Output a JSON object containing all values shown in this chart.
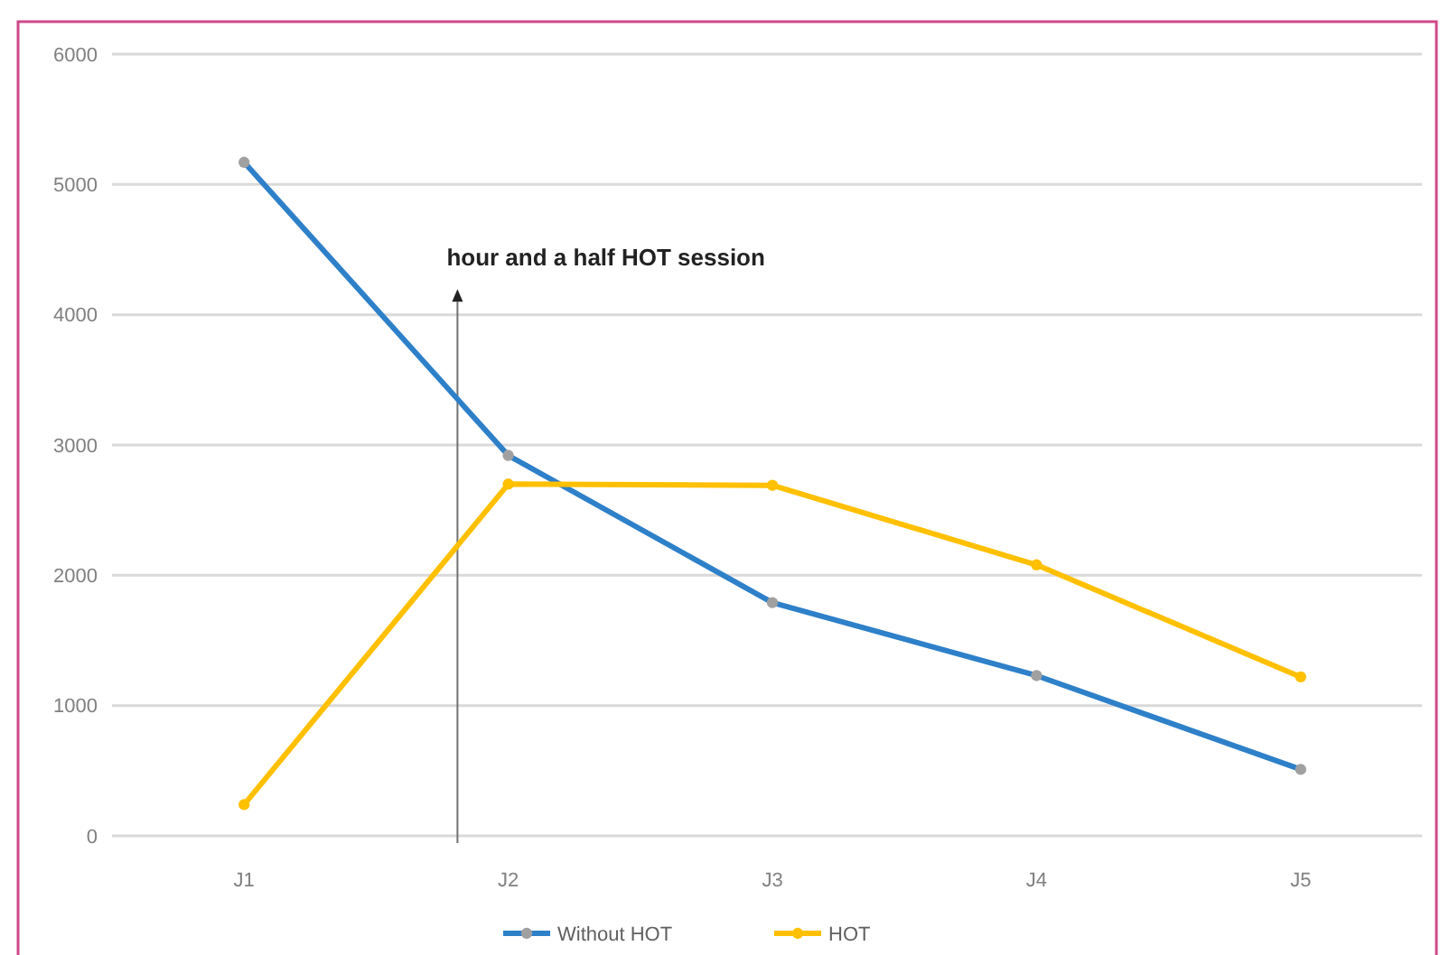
{
  "chart_data": {
    "type": "line",
    "categories": [
      "J1",
      "J2",
      "J3",
      "J4",
      "J5"
    ],
    "series": [
      {
        "name": "Without HOT",
        "color": "#2e80c9",
        "values": [
          5170,
          2920,
          1790,
          1230,
          510
        ]
      },
      {
        "name": "HOT",
        "color": "#ffc000",
        "values": [
          240,
          2700,
          2690,
          2080,
          1220
        ]
      }
    ],
    "ylim": [
      0,
      6000
    ],
    "yticks": [
      0,
      1000,
      2000,
      3000,
      4000,
      5000,
      6000
    ],
    "grid": "y",
    "legend": "bottom",
    "marker": "circle",
    "line_style": "solid",
    "annotations": [
      "hour and a half HOT session"
    ]
  }
}
